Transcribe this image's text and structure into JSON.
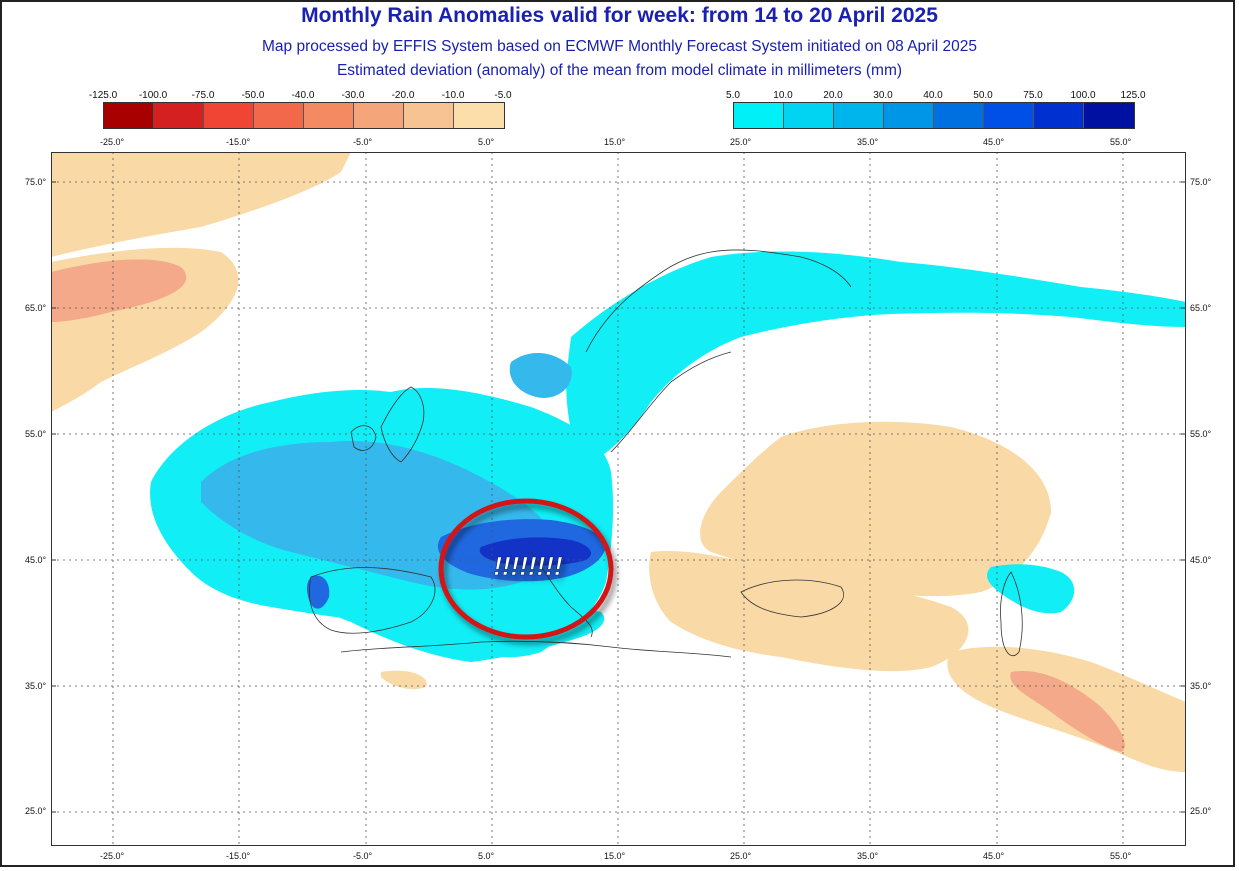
{
  "header": {
    "title": "Monthly Rain Anomalies valid for week: from 14 to 20 April 2025",
    "subtitle_line1": "Map processed by EFFIS System based on ECMWF Monthly Forecast System initiated on 08 April 2025",
    "subtitle_line2": "Estimated deviation (anomaly) of the mean from model climate in millimeters (mm)"
  },
  "legend_negative": {
    "labels": [
      "-125.0",
      "-100.0",
      "-75.0",
      "-50.0",
      "-40.0",
      "-30.0",
      "-20.0",
      "-10.0",
      "-5.0"
    ],
    "colors": [
      "#a80000",
      "#d42020",
      "#f04535",
      "#f2684a",
      "#f48a62",
      "#f5a57a",
      "#f7c393",
      "#fcdeab"
    ]
  },
  "legend_positive": {
    "labels": [
      "5.0",
      "10.0",
      "20.0",
      "30.0",
      "40.0",
      "50.0",
      "75.0",
      "100.0",
      "125.0"
    ],
    "colors": [
      "#00f0f8",
      "#00d4f2",
      "#00b4ec",
      "#0096e8",
      "#0070e0",
      "#0050e8",
      "#0030d0",
      "#0010a0"
    ]
  },
  "axes": {
    "lon_labels": [
      "-25.0°",
      "-15.0°",
      "-5.0°",
      "5.0°",
      "15.0°",
      "25.0°",
      "35.0°",
      "45.0°",
      "55.0°"
    ],
    "lat_labels": [
      "75.0°",
      "65.0°",
      "55.0°",
      "45.0°",
      "35.0°",
      "25.0°"
    ]
  },
  "annotation": {
    "text": "!!!!!!!!",
    "ring_color": "#d01818"
  },
  "colors": {
    "dry": "#f9d9a6",
    "dry_strong": "#f3a98a",
    "wet_light": "#12eef6",
    "wet_mid": "#35b8ec",
    "wet_deep": "#1f68e0",
    "wet_core": "#1233c6"
  }
}
